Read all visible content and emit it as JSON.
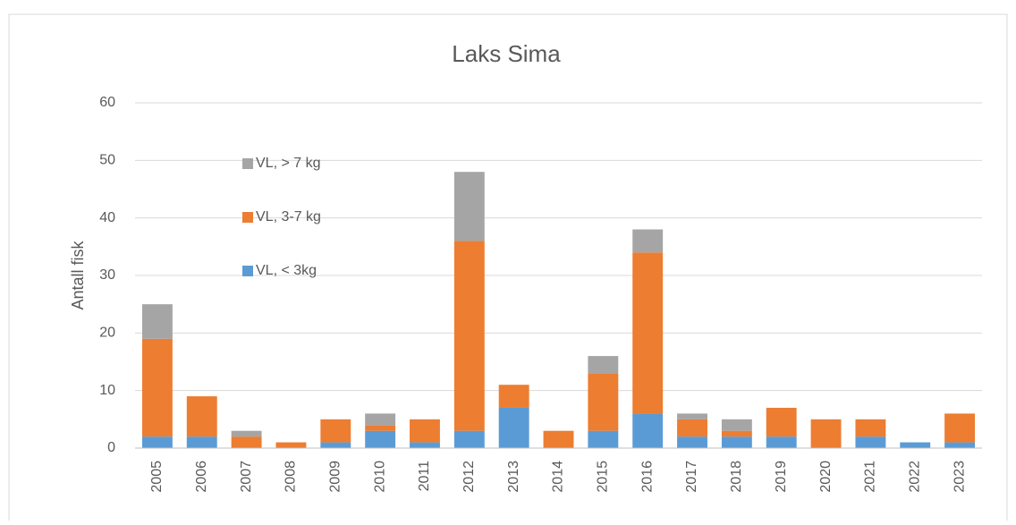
{
  "chart_data": {
    "type": "stacked_bar",
    "title": "Laks Sima",
    "y_label": "Antall fisk",
    "categories": [
      "2005",
      "2006",
      "2007",
      "2008",
      "2009",
      "2010",
      "2011",
      "2012",
      "2013",
      "2014",
      "2015",
      "2016",
      "2017",
      "2018",
      "2019",
      "2020",
      "2021",
      "2022",
      "2023"
    ],
    "series": [
      {
        "name": "VL, < 3kg",
        "color": "#5b9bd5",
        "values": [
          2,
          2,
          0,
          0,
          1,
          3,
          1,
          3,
          7,
          0,
          3,
          6,
          2,
          2,
          2,
          0,
          2,
          1,
          1
        ]
      },
      {
        "name": "VL, 3-7 kg",
        "color": "#ed7d31",
        "values": [
          17,
          7,
          2,
          1,
          4,
          1,
          4,
          33,
          4,
          3,
          10,
          28,
          3,
          1,
          5,
          5,
          3,
          0,
          5
        ]
      },
      {
        "name": "VL, > 7 kg",
        "color": "#a5a5a5",
        "values": [
          6,
          0,
          1,
          0,
          0,
          2,
          0,
          12,
          0,
          0,
          3,
          4,
          1,
          2,
          0,
          0,
          0,
          0,
          0
        ]
      }
    ],
    "ylim": [
      0,
      60
    ],
    "yticks": [
      0,
      10,
      20,
      30,
      40,
      50,
      60
    ],
    "grid": true
  }
}
